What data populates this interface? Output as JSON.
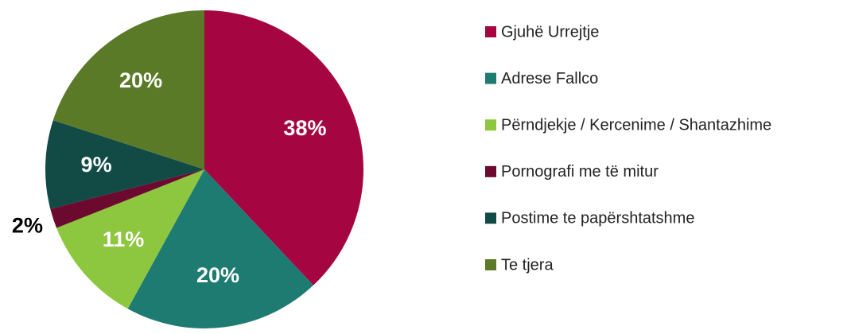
{
  "chart_data": {
    "type": "pie",
    "categories": [
      "Gjuhë Urrejtje",
      "Adrese Fallco",
      "Përndjekje / Kercenime / Shantazhime",
      "Pornografi me të mitur",
      "Postime te papërshtatshme",
      "Te tjera"
    ],
    "values": [
      38,
      20,
      11,
      2,
      9,
      20
    ],
    "value_labels": [
      "38%",
      "20%",
      "11%",
      "2%",
      "9%",
      "20%"
    ],
    "colors": [
      "#a50641",
      "#1e7b72",
      "#8dc63f",
      "#6b0a2e",
      "#124a46",
      "#5a7a28"
    ],
    "legend": "right"
  }
}
